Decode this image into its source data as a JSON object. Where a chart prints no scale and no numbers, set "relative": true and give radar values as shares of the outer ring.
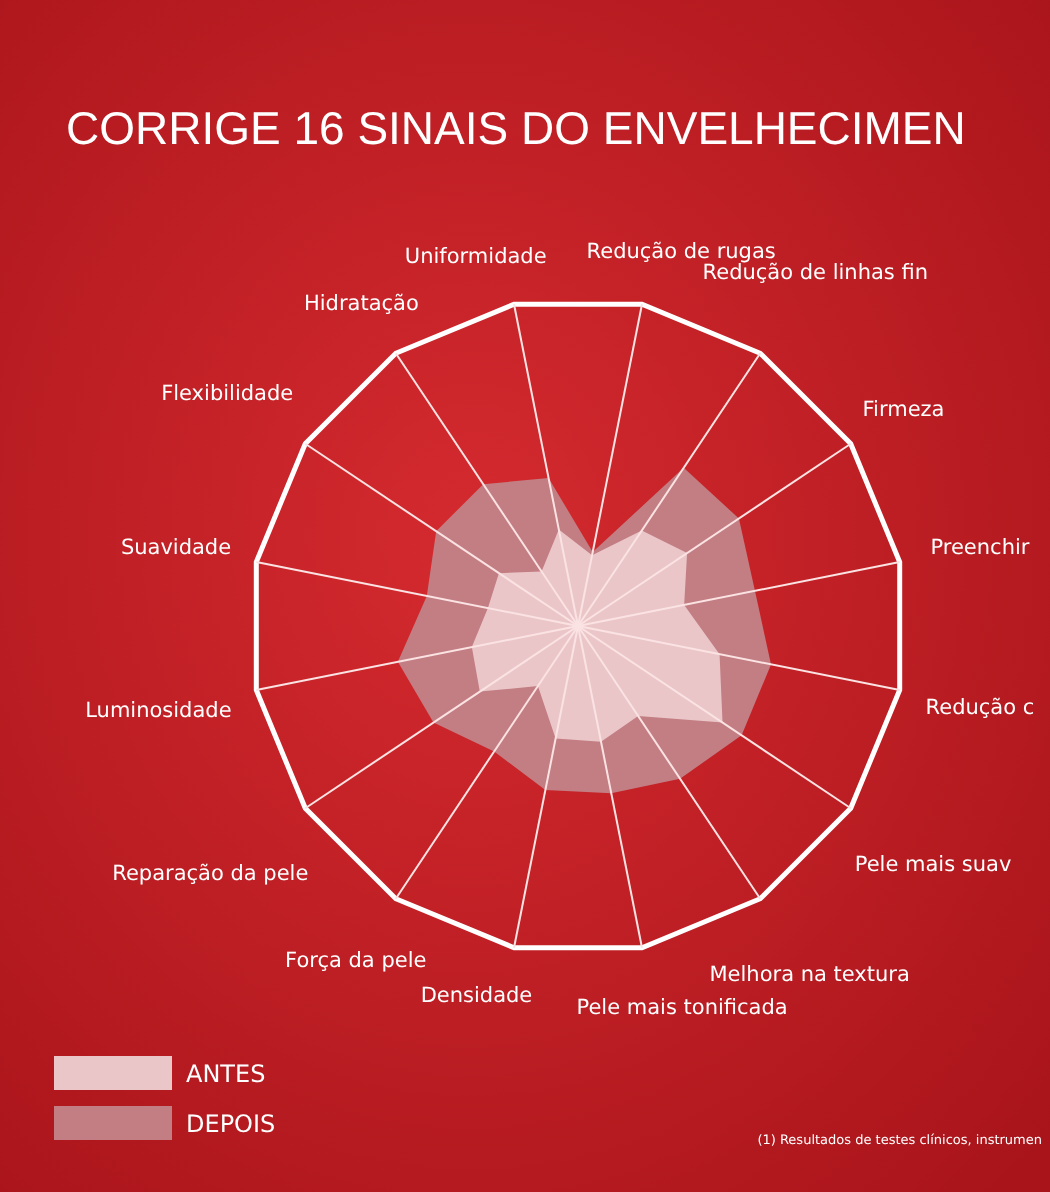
{
  "chart_data": {
    "type": "radar",
    "title": "CORRIGE 16 SINAIS DO ENVELHECIMEN",
    "relative": true,
    "grid": true,
    "legend": "bottom left",
    "categories": [
      "Uniformidade",
      "Redução de rugas",
      "Redução de linhas fin",
      "Firmeza",
      "Preenchir",
      "Redução c",
      "Pele mais suav",
      "Melhora na textura",
      "Pele mais tonificada",
      "Densidade",
      "Força da pele",
      "Reparação da pele",
      "Luminosidade",
      "Suavidade",
      "Flexibilidade",
      "Hidratação"
    ],
    "series": [
      {
        "name": "ANTES",
        "color": "#ebc6c9",
        "values": [
          0.3,
          0.22,
          0.35,
          0.4,
          0.33,
          0.44,
          0.53,
          0.33,
          0.36,
          0.35,
          0.22,
          0.36,
          0.33,
          0.28,
          0.29,
          0.2
        ]
      },
      {
        "name": "DEPOIS",
        "color": "#c27e83",
        "values": [
          0.46,
          0.23,
          0.58,
          0.59,
          0.55,
          0.6,
          0.6,
          0.56,
          0.52,
          0.51,
          0.46,
          0.53,
          0.56,
          0.47,
          0.52,
          0.52
        ]
      }
    ],
    "annotations": [
      "(1) Resultados de testes clínicos, instrumen"
    ]
  }
}
